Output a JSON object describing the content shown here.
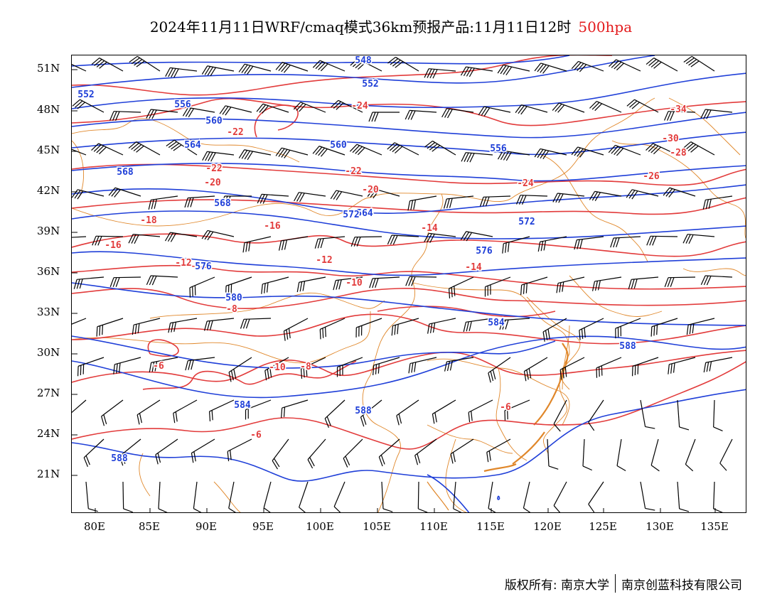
{
  "title": {
    "main": "2024年11月11日WRF/cmaq模式36km预报产品:11月11日12时",
    "level": "500hpa"
  },
  "axes": {
    "y_ticks": [
      "51N",
      "48N",
      "45N",
      "42N",
      "39N",
      "36N",
      "33N",
      "30N",
      "27N",
      "24N",
      "21N"
    ],
    "x_ticks": [
      "80E",
      "85E",
      "90E",
      "95E",
      "100E",
      "105E",
      "110E",
      "115E",
      "120E",
      "125E",
      "130E",
      "135E"
    ]
  },
  "colors": {
    "geopotential": "#1f3fd8",
    "temperature": "#e23b3b",
    "boundary": "#e0872a",
    "wind": "#000000"
  },
  "height_labels": [
    "548",
    "552",
    "552",
    "556",
    "556",
    "560",
    "560",
    "564",
    "564",
    "568",
    "568",
    "572",
    "572",
    "576",
    "576",
    "580",
    "584",
    "584",
    "588",
    "588",
    "588"
  ],
  "temp_labels": [
    "-34",
    "-30",
    "-28",
    "-26",
    "-24",
    "-24",
    "-22",
    "-22",
    "-22",
    "-20",
    "-20",
    "-18",
    "-16",
    "-16",
    "-14",
    "-14",
    "-12",
    "-12",
    "-10",
    "-10",
    "-8",
    "-8",
    "-6",
    "-6",
    "-6"
  ],
  "footer": {
    "left": "版权所有: 南京大学",
    "right": "南京创蓝科技有限公司"
  }
}
